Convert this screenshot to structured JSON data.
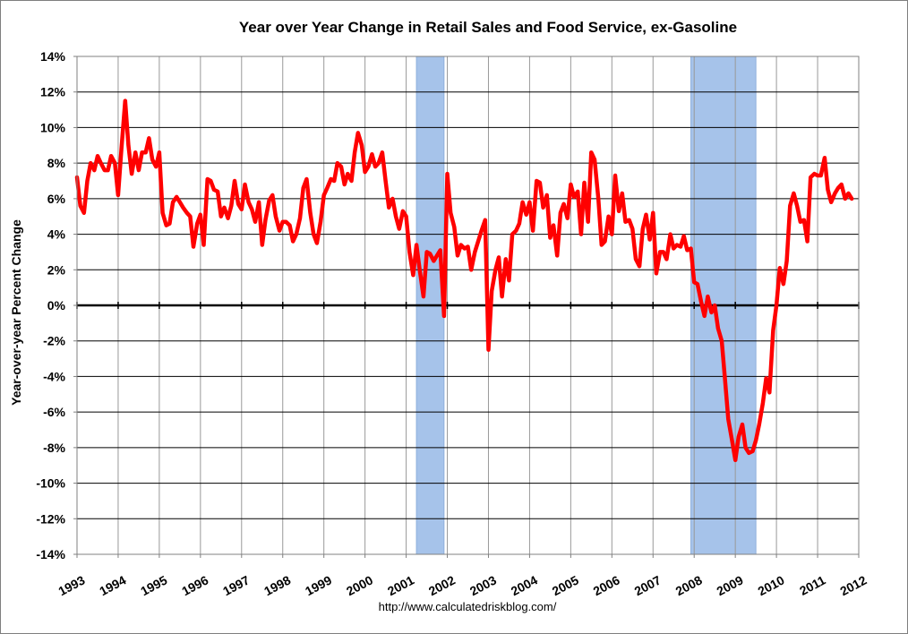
{
  "chart_data": {
    "type": "line",
    "title": "Year over Year Change in Retail Sales and Food Service, ex-Gasoline",
    "xlabel": "",
    "ylabel": "Year-over-year Percent Change",
    "source": "http://www.calculatedriskblog.com/",
    "xlim": [
      1993,
      2012
    ],
    "ylim": [
      -14,
      14
    ],
    "ytick_step": 2,
    "x_tick_labels": [
      "1993",
      "1994",
      "1995",
      "1996",
      "1997",
      "1998",
      "1999",
      "2000",
      "2001",
      "2002",
      "2003",
      "2004",
      "2005",
      "2006",
      "2007",
      "2008",
      "2009",
      "2010",
      "2011",
      "2012"
    ],
    "y_tick_labels": [
      "14%",
      "12%",
      "10%",
      "8%",
      "6%",
      "4%",
      "2%",
      "0%",
      "-2%",
      "-4%",
      "-6%",
      "-8%",
      "-10%",
      "-12%",
      "-14%"
    ],
    "grid": true,
    "recessions": [
      {
        "start": 2001.25,
        "end": 2001.92
      },
      {
        "start": 2007.92,
        "end": 2009.5
      }
    ],
    "colors": {
      "line": "#ff0000",
      "recession": "#a6c3ea",
      "plot_background": "#ffffff",
      "gridline": "#999999",
      "zero_line": "#000000"
    },
    "series": [
      {
        "name": "Retail Sales and Food Service ex-Gasoline YoY %",
        "points": [
          [
            1993.0,
            7.2
          ],
          [
            1993.08,
            5.6
          ],
          [
            1993.17,
            5.2
          ],
          [
            1993.25,
            7.0
          ],
          [
            1993.33,
            8.0
          ],
          [
            1993.42,
            7.6
          ],
          [
            1993.5,
            8.4
          ],
          [
            1993.58,
            8.0
          ],
          [
            1993.67,
            7.6
          ],
          [
            1993.75,
            7.6
          ],
          [
            1993.83,
            8.4
          ],
          [
            1993.92,
            8.0
          ],
          [
            1994.0,
            6.2
          ],
          [
            1994.08,
            8.8
          ],
          [
            1994.17,
            11.5
          ],
          [
            1994.25,
            9.0
          ],
          [
            1994.33,
            7.4
          ],
          [
            1994.42,
            8.6
          ],
          [
            1994.5,
            7.6
          ],
          [
            1994.58,
            8.6
          ],
          [
            1994.67,
            8.6
          ],
          [
            1994.75,
            9.4
          ],
          [
            1994.83,
            8.2
          ],
          [
            1994.92,
            7.8
          ],
          [
            1995.0,
            8.6
          ],
          [
            1995.08,
            5.2
          ],
          [
            1995.17,
            4.5
          ],
          [
            1995.25,
            4.6
          ],
          [
            1995.33,
            5.8
          ],
          [
            1995.42,
            6.1
          ],
          [
            1995.5,
            5.8
          ],
          [
            1995.58,
            5.5
          ],
          [
            1995.67,
            5.2
          ],
          [
            1995.75,
            5.0
          ],
          [
            1995.83,
            3.3
          ],
          [
            1995.92,
            4.6
          ],
          [
            1996.0,
            5.1
          ],
          [
            1996.08,
            3.4
          ],
          [
            1996.17,
            7.1
          ],
          [
            1996.25,
            7.0
          ],
          [
            1996.33,
            6.5
          ],
          [
            1996.42,
            6.4
          ],
          [
            1996.5,
            5.0
          ],
          [
            1996.58,
            5.5
          ],
          [
            1996.67,
            4.9
          ],
          [
            1996.75,
            5.6
          ],
          [
            1996.83,
            7.0
          ],
          [
            1996.92,
            5.7
          ],
          [
            1997.0,
            5.4
          ],
          [
            1997.08,
            6.8
          ],
          [
            1997.17,
            5.8
          ],
          [
            1997.25,
            5.4
          ],
          [
            1997.33,
            4.7
          ],
          [
            1997.42,
            5.8
          ],
          [
            1997.5,
            3.4
          ],
          [
            1997.58,
            4.8
          ],
          [
            1997.67,
            5.9
          ],
          [
            1997.75,
            6.2
          ],
          [
            1997.83,
            5.0
          ],
          [
            1997.92,
            4.2
          ],
          [
            1998.0,
            4.7
          ],
          [
            1998.08,
            4.7
          ],
          [
            1998.17,
            4.5
          ],
          [
            1998.25,
            3.6
          ],
          [
            1998.33,
            4.0
          ],
          [
            1998.42,
            4.9
          ],
          [
            1998.5,
            6.6
          ],
          [
            1998.58,
            7.1
          ],
          [
            1998.67,
            5.2
          ],
          [
            1998.75,
            4.0
          ],
          [
            1998.83,
            3.5
          ],
          [
            1998.92,
            4.7
          ],
          [
            1999.0,
            6.2
          ],
          [
            1999.08,
            6.6
          ],
          [
            1999.17,
            7.1
          ],
          [
            1999.25,
            7.0
          ],
          [
            1999.33,
            8.0
          ],
          [
            1999.42,
            7.8
          ],
          [
            1999.5,
            6.8
          ],
          [
            1999.58,
            7.4
          ],
          [
            1999.67,
            7.0
          ],
          [
            1999.75,
            8.6
          ],
          [
            1999.83,
            9.7
          ],
          [
            1999.92,
            9.0
          ],
          [
            2000.0,
            7.5
          ],
          [
            2000.08,
            7.8
          ],
          [
            2000.17,
            8.5
          ],
          [
            2000.25,
            7.8
          ],
          [
            2000.33,
            8.0
          ],
          [
            2000.42,
            8.6
          ],
          [
            2000.5,
            7.0
          ],
          [
            2000.58,
            5.5
          ],
          [
            2000.67,
            6.0
          ],
          [
            2000.75,
            5.0
          ],
          [
            2000.83,
            4.3
          ],
          [
            2000.92,
            5.3
          ],
          [
            2001.0,
            5.0
          ],
          [
            2001.08,
            3.0
          ],
          [
            2001.17,
            1.7
          ],
          [
            2001.25,
            3.4
          ],
          [
            2001.33,
            2.0
          ],
          [
            2001.42,
            0.5
          ],
          [
            2001.5,
            3.0
          ],
          [
            2001.58,
            2.9
          ],
          [
            2001.67,
            2.5
          ],
          [
            2001.75,
            2.8
          ],
          [
            2001.83,
            3.1
          ],
          [
            2001.92,
            -0.6
          ],
          [
            2002.0,
            7.4
          ],
          [
            2002.08,
            5.2
          ],
          [
            2002.17,
            4.4
          ],
          [
            2002.25,
            2.8
          ],
          [
            2002.33,
            3.4
          ],
          [
            2002.42,
            3.2
          ],
          [
            2002.5,
            3.3
          ],
          [
            2002.58,
            2.0
          ],
          [
            2002.67,
            3.0
          ],
          [
            2002.75,
            3.6
          ],
          [
            2002.83,
            4.2
          ],
          [
            2002.92,
            4.8
          ],
          [
            2003.0,
            -2.5
          ],
          [
            2003.08,
            0.8
          ],
          [
            2003.17,
            2.0
          ],
          [
            2003.25,
            2.7
          ],
          [
            2003.33,
            0.5
          ],
          [
            2003.42,
            2.6
          ],
          [
            2003.5,
            1.4
          ],
          [
            2003.58,
            4.0
          ],
          [
            2003.67,
            4.2
          ],
          [
            2003.75,
            4.6
          ],
          [
            2003.83,
            5.8
          ],
          [
            2003.92,
            5.1
          ],
          [
            2004.0,
            5.8
          ],
          [
            2004.08,
            4.2
          ],
          [
            2004.17,
            7.0
          ],
          [
            2004.25,
            6.9
          ],
          [
            2004.33,
            5.5
          ],
          [
            2004.42,
            6.2
          ],
          [
            2004.5,
            3.8
          ],
          [
            2004.58,
            4.5
          ],
          [
            2004.67,
            2.8
          ],
          [
            2004.75,
            5.2
          ],
          [
            2004.83,
            5.7
          ],
          [
            2004.92,
            4.9
          ],
          [
            2005.0,
            6.8
          ],
          [
            2005.08,
            6.1
          ],
          [
            2005.17,
            6.4
          ],
          [
            2005.25,
            4.0
          ],
          [
            2005.33,
            6.9
          ],
          [
            2005.42,
            4.7
          ],
          [
            2005.5,
            8.6
          ],
          [
            2005.58,
            8.2
          ],
          [
            2005.67,
            6.0
          ],
          [
            2005.75,
            3.4
          ],
          [
            2005.83,
            3.6
          ],
          [
            2005.92,
            5.0
          ],
          [
            2006.0,
            4.0
          ],
          [
            2006.08,
            7.3
          ],
          [
            2006.17,
            5.3
          ],
          [
            2006.25,
            6.3
          ],
          [
            2006.33,
            4.7
          ],
          [
            2006.42,
            4.8
          ],
          [
            2006.5,
            4.3
          ],
          [
            2006.58,
            2.6
          ],
          [
            2006.67,
            2.2
          ],
          [
            2006.75,
            4.3
          ],
          [
            2006.83,
            5.1
          ],
          [
            2006.92,
            3.7
          ],
          [
            2007.0,
            5.2
          ],
          [
            2007.08,
            1.8
          ],
          [
            2007.17,
            3.0
          ],
          [
            2007.25,
            3.0
          ],
          [
            2007.33,
            2.6
          ],
          [
            2007.42,
            4.0
          ],
          [
            2007.5,
            3.2
          ],
          [
            2007.58,
            3.4
          ],
          [
            2007.67,
            3.3
          ],
          [
            2007.75,
            3.9
          ],
          [
            2007.83,
            3.1
          ],
          [
            2007.92,
            3.2
          ],
          [
            2008.0,
            1.3
          ],
          [
            2008.08,
            1.2
          ],
          [
            2008.17,
            0.2
          ],
          [
            2008.25,
            -0.6
          ],
          [
            2008.33,
            0.5
          ],
          [
            2008.42,
            -0.4
          ],
          [
            2008.5,
            0.0
          ],
          [
            2008.58,
            -1.3
          ],
          [
            2008.67,
            -2.0
          ],
          [
            2008.75,
            -4.2
          ],
          [
            2008.83,
            -6.4
          ],
          [
            2008.92,
            -7.6
          ],
          [
            2009.0,
            -8.7
          ],
          [
            2009.08,
            -7.4
          ],
          [
            2009.17,
            -6.7
          ],
          [
            2009.25,
            -8.0
          ],
          [
            2009.33,
            -8.3
          ],
          [
            2009.42,
            -8.2
          ],
          [
            2009.5,
            -7.6
          ],
          [
            2009.58,
            -6.7
          ],
          [
            2009.67,
            -5.5
          ],
          [
            2009.75,
            -4.1
          ],
          [
            2009.83,
            -4.9
          ],
          [
            2009.92,
            -1.4
          ],
          [
            2010.0,
            0.0
          ],
          [
            2010.08,
            2.1
          ],
          [
            2010.17,
            1.2
          ],
          [
            2010.25,
            2.5
          ],
          [
            2010.33,
            5.6
          ],
          [
            2010.42,
            6.3
          ],
          [
            2010.5,
            5.6
          ],
          [
            2010.58,
            4.7
          ],
          [
            2010.67,
            4.8
          ],
          [
            2010.75,
            3.6
          ],
          [
            2010.83,
            7.2
          ],
          [
            2010.92,
            7.4
          ],
          [
            2011.0,
            7.3
          ],
          [
            2011.08,
            7.3
          ],
          [
            2011.17,
            8.3
          ],
          [
            2011.25,
            6.5
          ],
          [
            2011.33,
            5.8
          ],
          [
            2011.42,
            6.3
          ],
          [
            2011.5,
            6.6
          ],
          [
            2011.58,
            6.8
          ],
          [
            2011.67,
            6.0
          ],
          [
            2011.75,
            6.3
          ],
          [
            2011.83,
            6.0
          ]
        ]
      }
    ]
  }
}
